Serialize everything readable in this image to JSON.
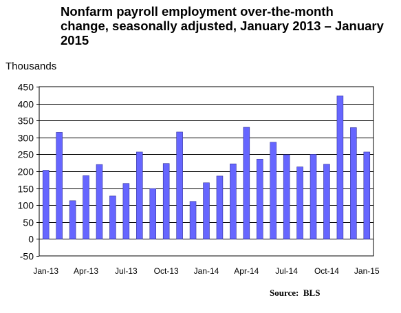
{
  "chart_data": {
    "type": "bar",
    "title": "Nonfarm payroll employment over-the-month change, seasonally adjusted, January 2013 – January 2015",
    "ylabel": "Thousands",
    "xlabel": "",
    "source": "Source:  BLS",
    "ylim": [
      -50,
      450
    ],
    "yticks": [
      450,
      400,
      350,
      300,
      250,
      200,
      150,
      100,
      50,
      0,
      -50
    ],
    "grid": true,
    "legend": "none",
    "bar_color": "#6666ff",
    "bar_edge_color": "#333399",
    "categories": [
      "Jan-13",
      "Feb-13",
      "Mar-13",
      "Apr-13",
      "May-13",
      "Jun-13",
      "Jul-13",
      "Aug-13",
      "Sep-13",
      "Oct-13",
      "Nov-13",
      "Dec-13",
      "Jan-14",
      "Feb-14",
      "Mar-14",
      "Apr-14",
      "May-14",
      "Jun-14",
      "Jul-14",
      "Aug-14",
      "Sep-14",
      "Oct-14",
      "Nov-14",
      "Dec-14",
      "Jan-15"
    ],
    "x_tick_labels": [
      "Jan-13",
      "Apr-13",
      "Jul-13",
      "Oct-13",
      "Jan-14",
      "Apr-14",
      "Jul-14",
      "Oct-14",
      "Jan-15"
    ],
    "values": [
      203,
      315,
      113,
      187,
      220,
      127,
      164,
      257,
      149,
      223,
      316,
      111,
      166,
      186,
      222,
      330,
      236,
      286,
      249,
      213,
      250,
      221,
      423,
      329,
      257
    ]
  }
}
